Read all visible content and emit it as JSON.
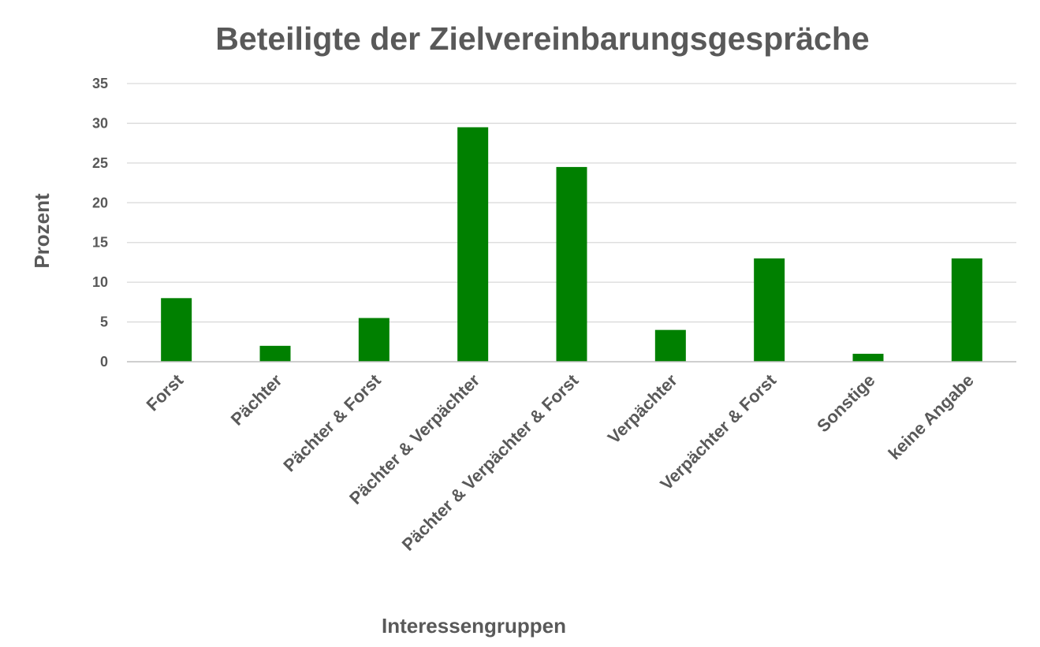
{
  "chart_data": {
    "type": "bar",
    "title": "Beteiligte der Zielvereinbarungsgespräche",
    "xlabel": "Interessengruppen",
    "ylabel": "Prozent",
    "categories": [
      "Forst",
      "Pächter",
      "Pächter & Forst",
      "Pächter & Verpächter",
      "Pächter & Verpächter & Forst",
      "Verpächter",
      "Verpächter & Forst",
      "Sonstige",
      "keine Angabe"
    ],
    "values": [
      8,
      2,
      5.5,
      29.5,
      24.5,
      4,
      13,
      1,
      13
    ],
    "ylim": [
      0,
      35
    ],
    "yticks": [
      0,
      5,
      10,
      15,
      20,
      25,
      30,
      35
    ],
    "grid": true,
    "legend": "none",
    "bar_color": "#008000"
  }
}
